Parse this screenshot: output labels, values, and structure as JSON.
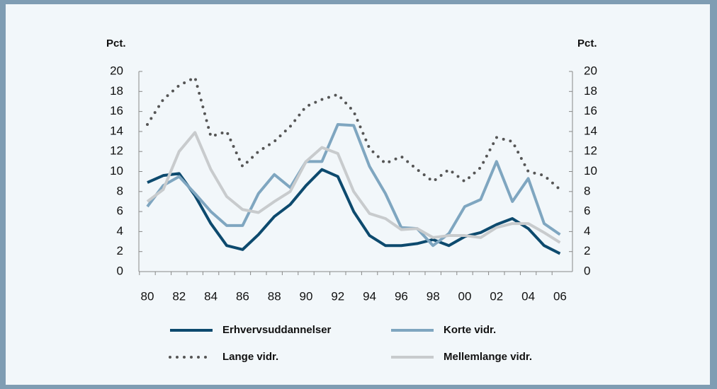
{
  "chart_data": {
    "type": "line",
    "y_label": "Pct.",
    "y2_label": "Pct.",
    "categories": [
      "80",
      null,
      "82",
      null,
      "84",
      null,
      "86",
      null,
      "88",
      null,
      "90",
      null,
      "92",
      null,
      "94",
      null,
      "96",
      null,
      "98",
      null,
      "00",
      null,
      "02",
      null,
      "04",
      null,
      "06"
    ],
    "series": [
      {
        "name": "Erhvervsuddannelser",
        "color": "#0d4a6e",
        "style": "solid",
        "values": [
          8.9,
          9.6,
          9.8,
          7.6,
          4.8,
          2.6,
          2.2,
          3.7,
          5.5,
          6.7,
          8.6,
          10.2,
          9.5,
          6.0,
          3.6,
          2.6,
          2.6,
          2.8,
          3.2,
          2.6,
          3.5,
          3.9,
          4.7,
          5.3,
          4.3,
          2.6,
          1.8
        ]
      },
      {
        "name": "Korte vidr.",
        "color": "#7fa6c0",
        "style": "solid",
        "values": [
          6.5,
          8.6,
          9.5,
          7.8,
          6.0,
          4.6,
          4.6,
          7.8,
          9.7,
          8.4,
          11.0,
          11.0,
          14.7,
          14.6,
          10.5,
          7.8,
          4.4,
          4.3,
          2.6,
          3.8,
          6.5,
          7.2,
          11.0,
          7.0,
          9.3,
          4.8,
          3.7
        ]
      },
      {
        "name": "Lange vidr.",
        "color": "#555555",
        "style": "dotted",
        "values": [
          14.7,
          17.2,
          18.6,
          19.4,
          13.5,
          14.0,
          10.5,
          12.0,
          13.0,
          14.5,
          16.5,
          17.2,
          17.7,
          16.0,
          12.3,
          10.8,
          11.5,
          10.2,
          9.0,
          10.2,
          9.0,
          10.4,
          13.4,
          13.0,
          10.0,
          9.6,
          8.2
        ]
      },
      {
        "name": "Mellemlange vidr.",
        "color": "#c8cbcd",
        "style": "solid",
        "values": [
          7.0,
          8.2,
          12.0,
          13.9,
          10.2,
          7.5,
          6.2,
          5.9,
          7.0,
          8.0,
          11.0,
          12.4,
          11.8,
          8.0,
          5.8,
          5.3,
          4.2,
          4.3,
          3.4,
          3.6,
          3.6,
          3.4,
          4.4,
          4.8,
          4.8,
          3.9,
          2.9
        ]
      }
    ],
    "ylim": [
      0,
      20
    ],
    "yticks": [
      0,
      2,
      4,
      6,
      8,
      10,
      12,
      14,
      16,
      18,
      20
    ],
    "y2lim": [
      0,
      20
    ],
    "y2ticks": [
      0,
      2,
      4,
      6,
      8,
      10,
      12,
      14,
      16,
      18,
      20
    ],
    "grid": false
  }
}
